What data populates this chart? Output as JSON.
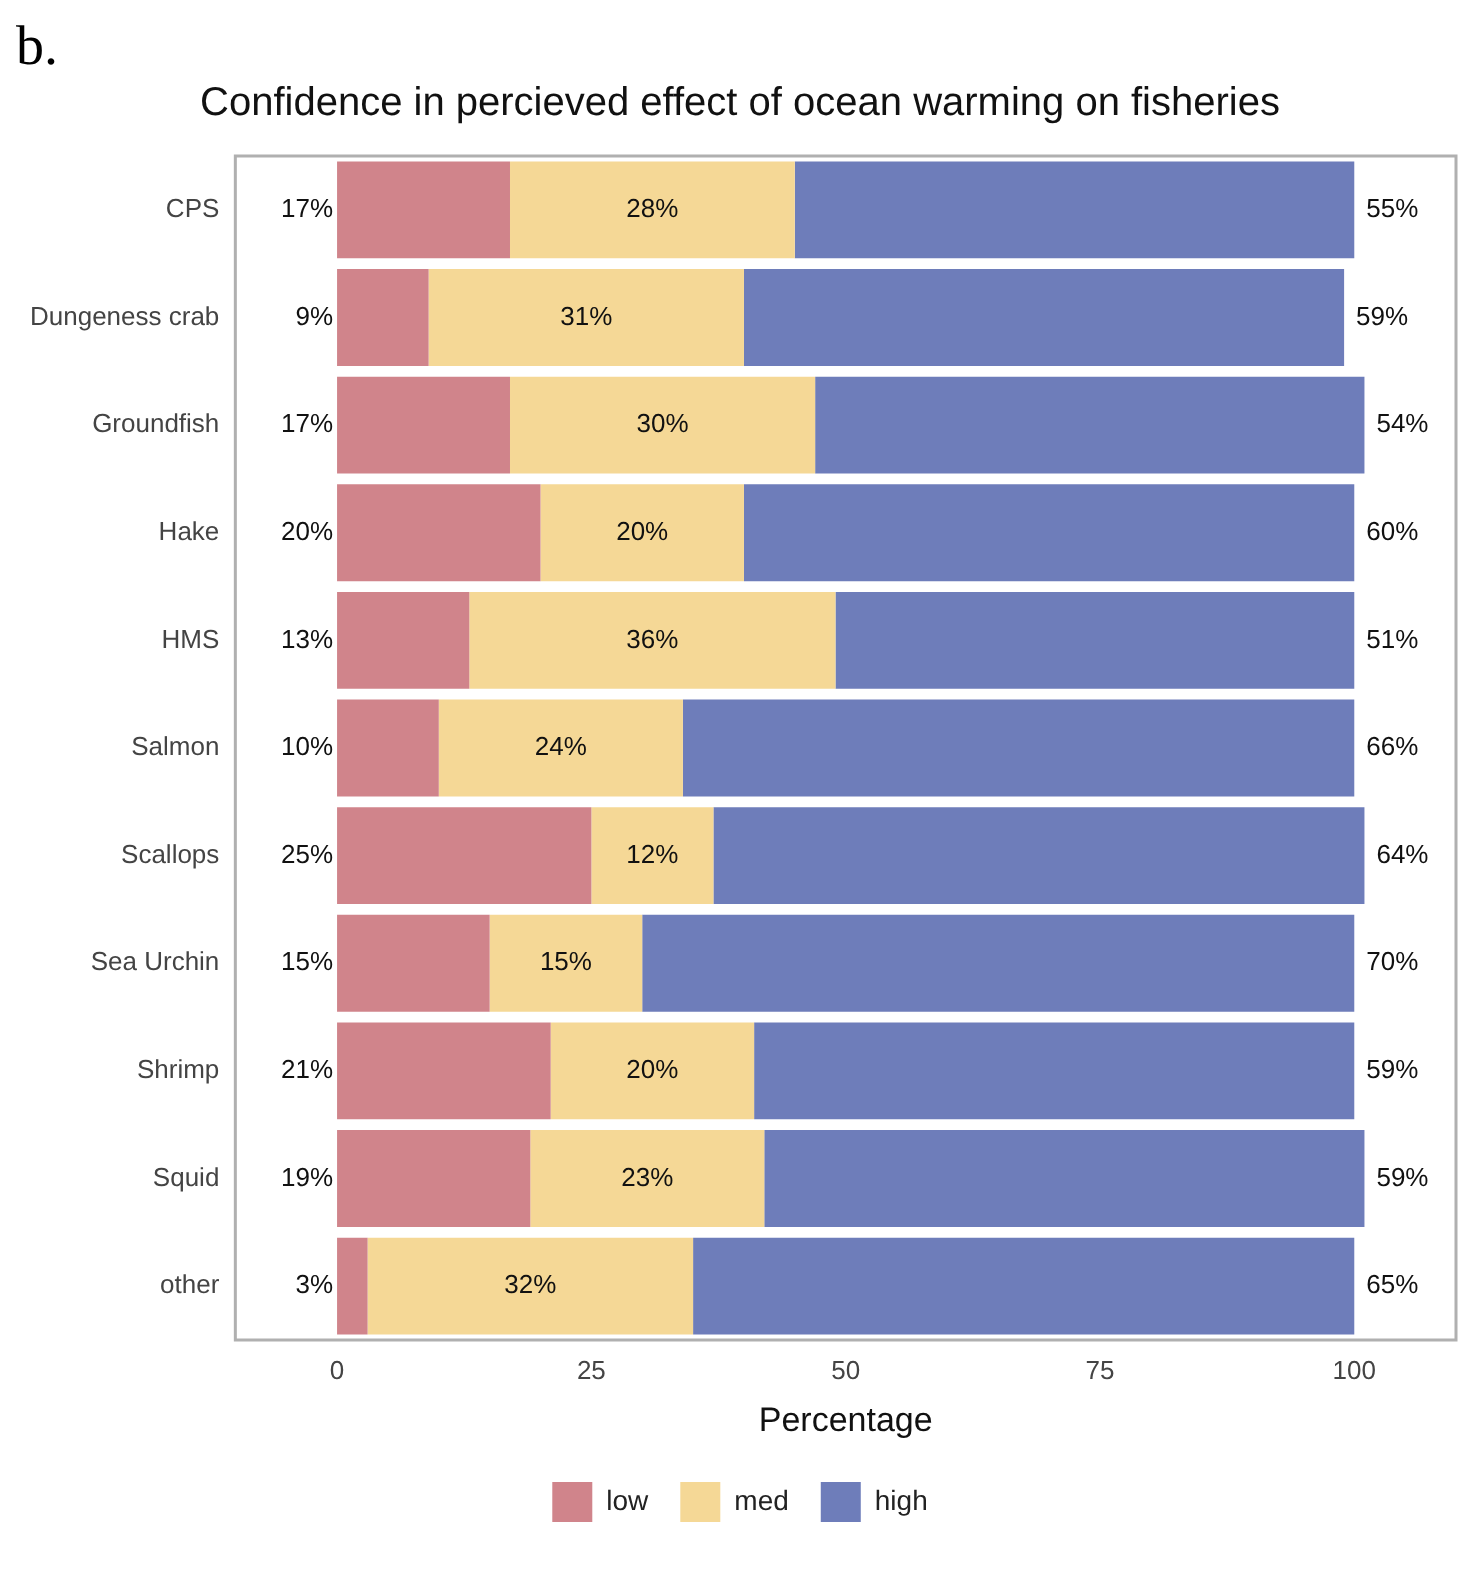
{
  "chart_data": {
    "type": "bar",
    "orientation": "horizontal",
    "stacked": true,
    "title": "Confidence in percieved effect of ocean warming on fisheries",
    "xlabel": "Percentage",
    "annotations": [
      "b."
    ],
    "categories": [
      "CPS",
      "Dungeness crab",
      "Groundfish",
      "Hake",
      "HMS",
      "Salmon",
      "Scallops",
      "Sea Urchin",
      "Shrimp",
      "Squid",
      "other"
    ],
    "series": [
      {
        "name": "low",
        "color": "#d0848b",
        "values": [
          17,
          9,
          17,
          20,
          13,
          10,
          25,
          15,
          21,
          19,
          3
        ],
        "value_labels": [
          "17%",
          "9%",
          "17%",
          "20%",
          "13%",
          "10%",
          "25%",
          "15%",
          "21%",
          "19%",
          "3%"
        ]
      },
      {
        "name": "med",
        "color": "#f5d896",
        "values": [
          28,
          31,
          30,
          20,
          36,
          24,
          12,
          15,
          20,
          23,
          32
        ],
        "value_labels": [
          "28%",
          "31%",
          "30%",
          "20%",
          "36%",
          "24%",
          "12%",
          "15%",
          "20%",
          "23%",
          "32%"
        ]
      },
      {
        "name": "high",
        "color": "#6e7dba",
        "values": [
          55,
          59,
          54,
          60,
          51,
          66,
          64,
          70,
          59,
          59,
          65
        ],
        "value_labels": [
          "55%",
          "59%",
          "54%",
          "60%",
          "51%",
          "66%",
          "64%",
          "70%",
          "59%",
          "59%",
          "65%"
        ]
      }
    ],
    "xlim": [
      -10,
      110
    ],
    "xticks": [
      0,
      25,
      50,
      75,
      100
    ],
    "grid": false,
    "legend": "bottom"
  }
}
